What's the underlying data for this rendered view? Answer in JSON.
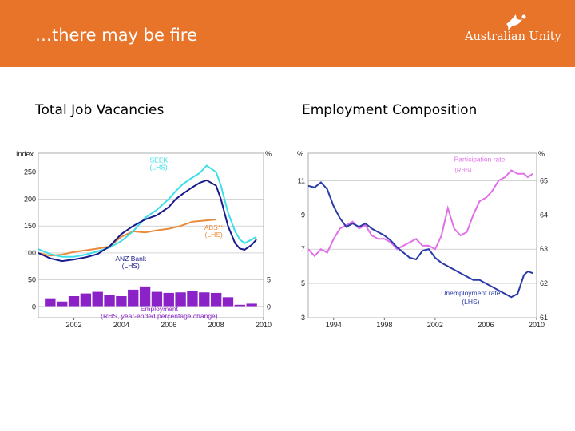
{
  "slide": {
    "title": "…there may be fire",
    "logo_text": "Australian Unity",
    "brand_color": "#e8742a",
    "logo_icon": "bird-icon"
  },
  "left_chart": {
    "heading": "Total Job Vacancies"
  },
  "right_chart": {
    "heading": "Employment Composition"
  },
  "chart_data": [
    {
      "type": "line",
      "title": "",
      "left_axis_label": "Index",
      "right_axis_label": "%",
      "x_ticks": [
        "2002",
        "2004",
        "2006",
        "2008",
        "2010"
      ],
      "xlim": [
        2000.5,
        2010
      ],
      "ylim_left": [
        -20,
        285
      ],
      "yticks_left": [
        0,
        50,
        100,
        150,
        200,
        250
      ],
      "ytick_labels_left": [
        "0",
        "50",
        "100",
        "150",
        "200",
        "250"
      ],
      "yticks_right": [
        {
          "label": "5",
          "value": 5
        },
        {
          "label": "0",
          "value": 0
        },
        {
          "label": "-5",
          "value": -5
        }
      ],
      "right_axis_map": {
        "zero_at_left": 0,
        "units_per_pct": 10
      },
      "series": [
        {
          "name": "SEEK",
          "label": [
            "SEEK",
            "(LHS)"
          ],
          "color": "#3de0e8",
          "axis": "left",
          "x": [
            2000.5,
            2001,
            2001.5,
            2002,
            2002.5,
            2003,
            2003.5,
            2004,
            2004.5,
            2005,
            2005.5,
            2006,
            2006.3,
            2006.6,
            2007,
            2007.3,
            2007.6,
            2008,
            2008.2,
            2008.5,
            2008.8,
            2009,
            2009.2,
            2009.5,
            2009.7
          ],
          "y": [
            107,
            98,
            93,
            93,
            97,
            103,
            110,
            122,
            140,
            165,
            180,
            200,
            215,
            228,
            240,
            248,
            262,
            250,
            225,
            175,
            140,
            125,
            118,
            125,
            130
          ]
        },
        {
          "name": "ANZ Bank",
          "label": [
            "ANZ Bank",
            "(LHS)"
          ],
          "color": "#1a1a8c",
          "axis": "left",
          "x": [
            2000.5,
            2001,
            2001.5,
            2002,
            2002.5,
            2003,
            2003.5,
            2004,
            2004.5,
            2005,
            2005.5,
            2006,
            2006.3,
            2006.6,
            2007,
            2007.3,
            2007.6,
            2008,
            2008.2,
            2008.5,
            2008.8,
            2009,
            2009.2,
            2009.5,
            2009.7
          ],
          "y": [
            100,
            90,
            85,
            88,
            92,
            98,
            112,
            135,
            150,
            162,
            170,
            185,
            200,
            210,
            222,
            230,
            235,
            225,
            200,
            150,
            118,
            108,
            106,
            115,
            125
          ]
        },
        {
          "name": "ABS**",
          "label": [
            "ABS**",
            "(LHS)"
          ],
          "color": "#e88a3a",
          "axis": "left",
          "x": [
            2000.5,
            2001,
            2001.5,
            2002,
            2002.5,
            2003,
            2003.5,
            2004,
            2004.5,
            2005,
            2005.5,
            2006,
            2006.5,
            2007,
            2007.5,
            2008
          ],
          "y": [
            100,
            95,
            97,
            102,
            105,
            108,
            112,
            130,
            140,
            138,
            142,
            145,
            150,
            158,
            160,
            162
          ]
        },
        {
          "name": "Employment",
          "label": [
            "Employment",
            "(RHS, year-ended percentage change)"
          ],
          "color": "#8a22c8",
          "axis": "right",
          "type": "bar",
          "x": [
            2001,
            2001.5,
            2002,
            2002.5,
            2003,
            2003.5,
            2004,
            2004.5,
            2005,
            2005.5,
            2006,
            2006.5,
            2007,
            2007.5,
            2008,
            2008.5,
            2009,
            2009.5
          ],
          "y": [
            1.6,
            1.0,
            2.0,
            2.5,
            2.8,
            2.2,
            2.0,
            3.2,
            3.8,
            2.8,
            2.6,
            2.7,
            3.0,
            2.7,
            2.6,
            1.8,
            0.4,
            0.6
          ]
        }
      ]
    },
    {
      "type": "line",
      "title": "",
      "left_axis_label": "%",
      "right_axis_label": "%",
      "x_ticks": [
        "1994",
        "1998",
        "2002",
        "2006",
        "2010"
      ],
      "xlim": [
        1992,
        2010
      ],
      "ylim_left": [
        3,
        12.6
      ],
      "yticks_left": [
        3,
        5,
        7,
        9,
        11
      ],
      "yticks_right": [
        {
          "label": "61",
          "value": 61
        },
        {
          "label": "62",
          "value": 62
        },
        {
          "label": "63",
          "value": 63
        },
        {
          "label": "64",
          "value": 64
        },
        {
          "label": "65",
          "value": 65
        }
      ],
      "right_axis_map": {
        "left_at_61": 3,
        "left_per_unit": 2
      },
      "series": [
        {
          "name": "Unemployment rate",
          "label": [
            "Unemployment rate",
            "(LHS)"
          ],
          "color": "#2a3aa8",
          "axis": "left",
          "x": [
            1992,
            1992.5,
            1993,
            1993.5,
            1994,
            1994.5,
            1995,
            1995.5,
            1996,
            1996.5,
            1997,
            1997.5,
            1998,
            1998.5,
            1999,
            1999.5,
            2000,
            2000.5,
            2001,
            2001.5,
            2002,
            2002.5,
            2003,
            2003.5,
            2004,
            2004.5,
            2005,
            2005.5,
            2006,
            2006.5,
            2007,
            2007.5,
            2008,
            2008.5,
            2009,
            2009.3,
            2009.7
          ],
          "y": [
            10.7,
            10.6,
            10.9,
            10.5,
            9.5,
            8.8,
            8.3,
            8.5,
            8.3,
            8.5,
            8.2,
            8.0,
            7.8,
            7.5,
            7.1,
            6.8,
            6.5,
            6.4,
            6.9,
            7.0,
            6.5,
            6.2,
            6.0,
            5.8,
            5.6,
            5.4,
            5.2,
            5.2,
            5.0,
            4.8,
            4.6,
            4.4,
            4.2,
            4.4,
            5.5,
            5.7,
            5.6
          ]
        },
        {
          "name": "Participation rate",
          "label": [
            "Participation rate",
            "(RHS)"
          ],
          "color": "#e070e8",
          "axis": "right",
          "x": [
            1992,
            1992.5,
            1993,
            1993.5,
            1994,
            1994.5,
            1995,
            1995.5,
            1996,
            1996.5,
            1997,
            1997.5,
            1998,
            1998.5,
            1999,
            1999.5,
            2000,
            2000.5,
            2001,
            2001.5,
            2002,
            2002.5,
            2003,
            2003.5,
            2004,
            2004.5,
            2005,
            2005.5,
            2006,
            2006.5,
            2007,
            2007.5,
            2008,
            2008.5,
            2009,
            2009.3,
            2009.7
          ],
          "y": [
            63.0,
            62.8,
            63.0,
            62.9,
            63.3,
            63.6,
            63.7,
            63.8,
            63.6,
            63.7,
            63.4,
            63.3,
            63.3,
            63.2,
            63.0,
            63.1,
            63.2,
            63.3,
            63.1,
            63.1,
            63.0,
            63.4,
            64.2,
            63.6,
            63.4,
            63.5,
            64.0,
            64.4,
            64.5,
            64.7,
            65.0,
            65.1,
            65.3,
            65.2,
            65.2,
            65.1,
            65.2
          ]
        }
      ]
    }
  ]
}
